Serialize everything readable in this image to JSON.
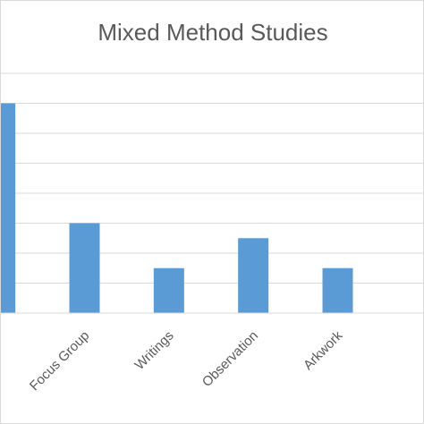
{
  "chart_data": {
    "type": "bar",
    "title": "Mixed Method Studies",
    "categories": [
      "",
      "Focus Group",
      "Writings",
      "Observation",
      "Arkwork",
      ""
    ],
    "values": [
      7,
      3,
      1.5,
      2.5,
      1.5,
      null
    ],
    "ylim": [
      0,
      8
    ],
    "grid": true,
    "bar_color": "#5b9bd5",
    "grid_color": "#d9d9d9",
    "text_color": "#595959",
    "legend": "none"
  }
}
